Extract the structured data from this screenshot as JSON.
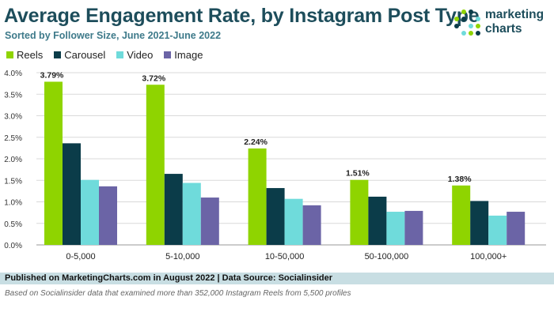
{
  "header": {
    "title": "Average Engagement Rate, by Instagram Post Type",
    "subtitle": "Sorted by Follower Size, June 2021-June 2022"
  },
  "logo": {
    "line1": "marketing",
    "line2": "charts"
  },
  "chart_data": {
    "type": "bar",
    "title": "Average Engagement Rate, by Instagram Post Type",
    "subtitle": "Sorted by Follower Size, June 2021-June 2022",
    "xlabel": "",
    "ylabel": "",
    "ylim": [
      0,
      4.0
    ],
    "yticks": [
      0.0,
      0.5,
      1.0,
      1.5,
      2.0,
      2.5,
      3.0,
      3.5,
      4.0
    ],
    "ytick_labels": [
      "0.0%",
      "0.5%",
      "1.0%",
      "1.5%",
      "2.0%",
      "2.5%",
      "3.0%",
      "3.5%",
      "4.0%"
    ],
    "grid": true,
    "legend_position": "top-left",
    "categories": [
      "0-5,000",
      "5-10,000",
      "10-50,000",
      "50-100,000",
      "100,000+"
    ],
    "series": [
      {
        "name": "Reels",
        "color": "#8fd400",
        "values": [
          3.79,
          3.72,
          2.24,
          1.51,
          1.38
        ],
        "data_labels": [
          "3.79%",
          "3.72%",
          "2.24%",
          "1.51%",
          "1.38%"
        ]
      },
      {
        "name": "Carousel",
        "color": "#0b3c49",
        "values": [
          2.36,
          1.65,
          1.32,
          1.12,
          1.02
        ]
      },
      {
        "name": "Video",
        "color": "#6fdbdb",
        "values": [
          1.51,
          1.44,
          1.07,
          0.77,
          0.68
        ]
      },
      {
        "name": "Image",
        "color": "#6b64a6",
        "values": [
          1.36,
          1.1,
          0.92,
          0.79,
          0.77
        ]
      }
    ]
  },
  "footer": {
    "published": "Published on MarketingCharts.com in August 2022 | Data Source: Socialinsider",
    "note": "Based on Socialinsider data that examined more than 352,000 Instagram Reels from 5,500 profiles"
  }
}
